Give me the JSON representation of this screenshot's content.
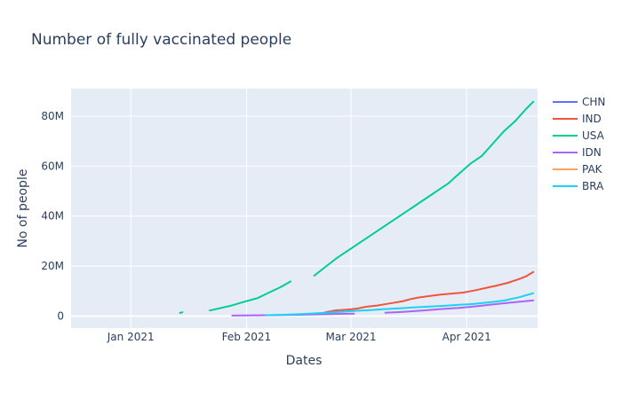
{
  "chart_data": {
    "type": "line",
    "title": "Number of fully vaccinated people",
    "xlabel": "Dates",
    "ylabel": "No of people",
    "x_ticks": [
      "2021-01-01",
      "2021-02-01",
      "2021-03-01",
      "2021-04-01"
    ],
    "x_tick_labels": [
      "Jan 2021",
      "Feb 2021",
      "Mar 2021",
      "Apr 2021"
    ],
    "y_ticks": [
      0,
      20000000,
      40000000,
      60000000,
      80000000
    ],
    "y_tick_labels": [
      "0",
      "20M",
      "40M",
      "60M",
      "80M"
    ],
    "xlim": [
      "2020-12-16",
      "2021-04-20"
    ],
    "ylim": [
      -4800000,
      91000000
    ],
    "grid": true,
    "legend_position": "top-right",
    "series": [
      {
        "name": "CHN",
        "color": "#636efa",
        "x": [],
        "y": []
      },
      {
        "name": "IND",
        "color": "#EF553B",
        "x": [
          "2021-02-22",
          "2021-02-25",
          "2021-03-01",
          "2021-03-03",
          "2021-03-05",
          "2021-03-08",
          "2021-03-10",
          "2021-03-12",
          "2021-03-15",
          "2021-03-17",
          "2021-03-19",
          "2021-03-22",
          "2021-03-25",
          "2021-03-28",
          "2021-03-31",
          "2021-04-03",
          "2021-04-06",
          "2021-04-09",
          "2021-04-12",
          "2021-04-15",
          "2021-04-17",
          "2021-04-19"
        ],
        "y": [
          1500000,
          2300000,
          2700000,
          3100000,
          3700000,
          4200000,
          4700000,
          5200000,
          6000000,
          6800000,
          7400000,
          8000000,
          8600000,
          9000000,
          9400000,
          10200000,
          11200000,
          12200000,
          13300000,
          14800000,
          16000000,
          17800000
        ]
      },
      {
        "name": "USA",
        "color": "#00cc96",
        "x": [
          "2021-01-14",
          "2021-01-15",
          "2021-01-19",
          "2021-01-22",
          "2021-01-25",
          "2021-01-28",
          "2021-02-01",
          "2021-02-04",
          "2021-02-07",
          "2021-02-10",
          "2021-02-13",
          "2021-02-16",
          "2021-02-19",
          "2021-02-22",
          "2021-02-25",
          "2021-02-28",
          "2021-03-03",
          "2021-03-06",
          "2021-03-09",
          "2021-03-11",
          "2021-03-12",
          "2021-03-15",
          "2021-03-18",
          "2021-03-21",
          "2021-03-24",
          "2021-03-27",
          "2021-03-30",
          "2021-04-02",
          "2021-04-05",
          "2021-04-08",
          "2021-04-11",
          "2021-04-14",
          "2021-04-17",
          "2021-04-19"
        ],
        "y": [
          1200000,
          1600000,
          null,
          2200000,
          3200000,
          4200000,
          6000000,
          7200000,
          9400000,
          11500000,
          14000000,
          null,
          16000000,
          19500000,
          23000000,
          26000000,
          29000000,
          32000000,
          35000000,
          37000000,
          38000000,
          41000000,
          44000000,
          47000000,
          50000000,
          53000000,
          57000000,
          61000000,
          64000000,
          69000000,
          74000000,
          78000000,
          83000000,
          86000000
        ]
      },
      {
        "name": "IDN",
        "color": "#ab63fa",
        "x": [
          "2021-01-28",
          "2021-02-04",
          "2021-02-11",
          "2021-02-18",
          "2021-02-23",
          "2021-03-02",
          "null",
          "2021-03-10",
          "2021-03-15",
          "2021-03-20",
          "2021-03-25",
          "2021-03-30",
          "2021-04-04",
          "2021-04-09",
          "2021-04-14",
          "2021-04-19"
        ],
        "y": [
          200000,
          300000,
          400000,
          600000,
          800000,
          1000000,
          null,
          1300000,
          1700000,
          2200000,
          2800000,
          3300000,
          4000000,
          4800000,
          5600000,
          6300000
        ]
      },
      {
        "name": "PAK",
        "color": "#FFA15A",
        "x": [],
        "y": []
      },
      {
        "name": "BRA",
        "color": "#19d3f3",
        "x": [
          "2021-02-06",
          "2021-02-10",
          "2021-02-14",
          "2021-02-18",
          "2021-02-22",
          "2021-02-26",
          "2021-03-02",
          "2021-03-06",
          "2021-03-10",
          "2021-03-14",
          "2021-03-18",
          "2021-03-22",
          "2021-03-26",
          "2021-03-30",
          "2021-04-03",
          "2021-04-07",
          "2021-04-11",
          "2021-04-15",
          "2021-04-19"
        ],
        "y": [
          300000,
          500000,
          700000,
          1000000,
          1300000,
          1700000,
          2100000,
          2400000,
          2800000,
          3100000,
          3500000,
          3800000,
          4100000,
          4500000,
          4900000,
          5500000,
          6200000,
          7500000,
          9200000
        ]
      }
    ]
  }
}
